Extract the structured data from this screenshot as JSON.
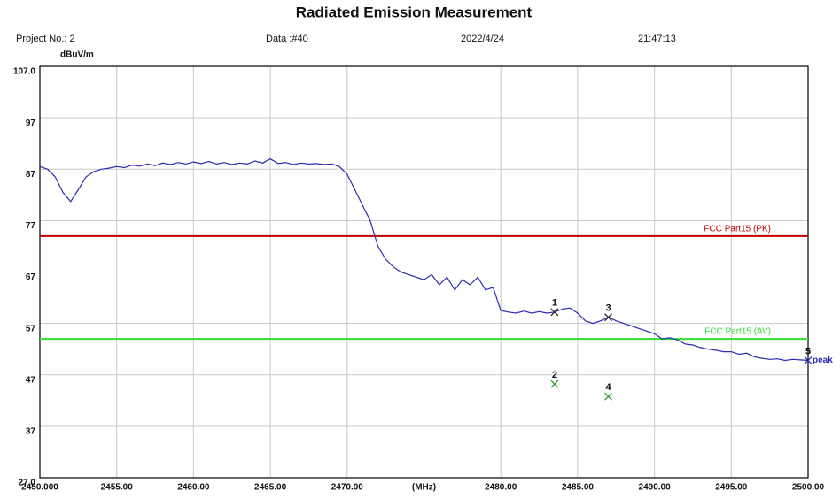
{
  "chart_data": {
    "type": "line",
    "title": "Radiated Emission Measurement",
    "header": [
      "Project No.: 2",
      "Data :#40",
      "2022/4/24",
      "21:47:13"
    ],
    "y_unit": "dBuV/m",
    "xlim": [
      2450,
      2500
    ],
    "ylim": [
      27,
      107
    ],
    "xticks": [
      {
        "value": 2450,
        "label": "2450.000"
      },
      {
        "value": 2455,
        "label": "2455.00"
      },
      {
        "value": 2460,
        "label": "2460.00"
      },
      {
        "value": 2465,
        "label": "2465.00"
      },
      {
        "value": 2470,
        "label": "2470.00"
      },
      {
        "value": 2475,
        "label": "(MHz)"
      },
      {
        "value": 2480,
        "label": "2480.00"
      },
      {
        "value": 2485,
        "label": "2485.00"
      },
      {
        "value": 2490,
        "label": "2490.00"
      },
      {
        "value": 2495,
        "label": "2495.00"
      },
      {
        "value": 2500,
        "label": "2500.00"
      }
    ],
    "yticks": [
      {
        "value": 107,
        "label": "107.0"
      },
      97,
      87,
      77,
      67,
      57,
      47,
      37,
      {
        "value": 27,
        "label": "27.0"
      }
    ],
    "grid": true,
    "series": [
      {
        "color": "#2b2bb0",
        "x": [
          2450,
          2450.5,
          2451,
          2451.5,
          2452,
          2452.5,
          2453,
          2453.5,
          2454,
          2454.5,
          2455,
          2455.5,
          2456,
          2456.5,
          2457,
          2457.5,
          2458,
          2458.5,
          2459,
          2459.5,
          2460,
          2460.5,
          2461,
          2461.5,
          2462,
          2462.5,
          2463,
          2463.5,
          2464,
          2464.5,
          2465,
          2465.5,
          2466,
          2466.5,
          2467,
          2467.5,
          2468,
          2468.5,
          2469,
          2469.5,
          2470,
          2470.5,
          2471,
          2471.5,
          2472,
          2472.5,
          2473,
          2473.5,
          2474,
          2474.5,
          2475,
          2475.5,
          2476,
          2476.5,
          2477,
          2477.5,
          2478,
          2478.5,
          2479,
          2479.5,
          2480,
          2480.5,
          2481,
          2481.5,
          2482,
          2482.5,
          2483,
          2483.5,
          2484,
          2484.5,
          2485,
          2485.5,
          2486,
          2486.5,
          2487,
          2487.5,
          2488,
          2488.5,
          2489,
          2489.5,
          2490,
          2490.5,
          2491,
          2491.5,
          2492,
          2492.5,
          2493,
          2493.5,
          2494,
          2494.5,
          2495,
          2495.5,
          2496,
          2496.5,
          2497,
          2497.5,
          2498,
          2498.5,
          2499,
          2499.5,
          2500
        ],
        "values": [
          87.5,
          87,
          85.5,
          82.5,
          80.7,
          83,
          85.5,
          86.5,
          87,
          87.2,
          87.5,
          87.3,
          87.8,
          87.6,
          88,
          87.7,
          88.2,
          87.9,
          88.3,
          88,
          88.4,
          88.1,
          88.5,
          88,
          88.3,
          87.9,
          88.2,
          88,
          88.6,
          88.2,
          89,
          88.1,
          88.3,
          87.9,
          88.2,
          88,
          88.1,
          87.9,
          88,
          87.5,
          86,
          83,
          80,
          77,
          72,
          69.5,
          68,
          67,
          66.5,
          66,
          65.5,
          66.5,
          64.5,
          66,
          63.5,
          65.5,
          64.5,
          66,
          63.5,
          64,
          59.5,
          59.2,
          59,
          59.4,
          59,
          59.3,
          59,
          59.2,
          59.8,
          60,
          59,
          57.5,
          57,
          57.5,
          58.2,
          57.5,
          57,
          56.5,
          56,
          55.5,
          55,
          54,
          54.2,
          53.8,
          53,
          52.8,
          52.3,
          52,
          51.8,
          51.5,
          51.5,
          51,
          51.2,
          50.5,
          50.2,
          50,
          50.1,
          49.8,
          50,
          49.9,
          49.8
        ]
      }
    ],
    "limits": [
      {
        "name": "FCC Part15 (PK)",
        "value": 74,
        "color": "#c00000"
      },
      {
        "name": "FCC Part15 (AV)",
        "value": 54,
        "color": "#33dd33"
      }
    ],
    "markers": [
      {
        "label": "1",
        "x": 2483.5,
        "y": 59.2,
        "color": "#222222"
      },
      {
        "label": "2",
        "x": 2483.5,
        "y": 45.2,
        "color": "#2a9a2a"
      },
      {
        "label": "3",
        "x": 2487,
        "y": 58.2,
        "color": "#222222"
      },
      {
        "label": "4",
        "x": 2487,
        "y": 42.8,
        "color": "#2a9a2a"
      },
      {
        "label": "5",
        "x": 2500,
        "y": 49.8,
        "color": "#2b2bb0"
      }
    ],
    "annotations": [
      "peak"
    ]
  }
}
